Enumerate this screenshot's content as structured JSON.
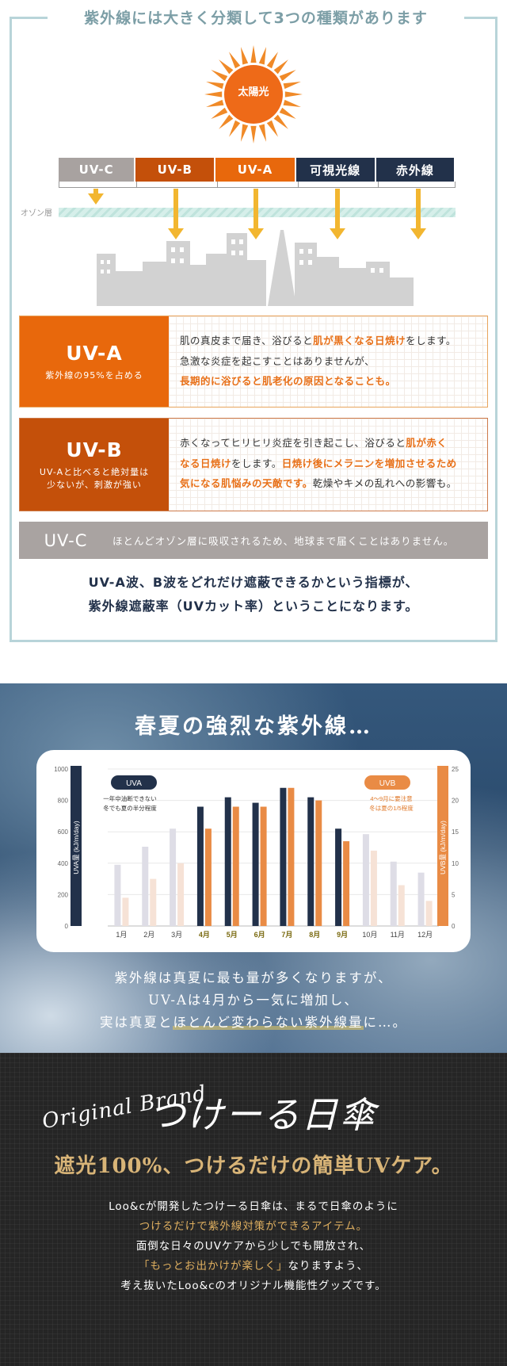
{
  "section1": {
    "title": "紫外線には大きく分類して3つの種類があります",
    "sun_label": "太陽光",
    "bands": [
      {
        "label": "UV-C",
        "color": "#a8a2a0"
      },
      {
        "label": "UV-B",
        "color": "#c4500a"
      },
      {
        "label": "UV-A",
        "color": "#e8680c"
      },
      {
        "label": "可視光線",
        "color": "#22314a"
      },
      {
        "label": "赤外線",
        "color": "#22314a"
      }
    ],
    "ozone_label": "オゾン層",
    "uva": {
      "title": "UV-A",
      "subtitle": "紫外線の95%を占める",
      "color": "#e8680c",
      "line1_pre": "肌の真皮まで届き、浴びると",
      "line1_hl": "肌が黒くなる日焼け",
      "line1_post": "をします。",
      "line2": "急激な炎症を起こすことはありませんが、",
      "line3_hl": "長期的に浴びると肌老化の原因となることも。"
    },
    "uvb": {
      "title": "UV-B",
      "subtitle_1": "UV-Aと比べると絶対量は",
      "subtitle_2": "少ないが、刺激が強い",
      "color": "#c4500a",
      "line1_pre": "赤くなってヒリヒリ炎症を引き起こし、浴びると",
      "line1_hl": "肌が赤く",
      "line2_hl": "なる日焼け",
      "line2_mid": "をします。",
      "line2_hl2": "日焼け後にメラニンを増加させるため",
      "line3_hl": "気になる肌悩みの天敵です。",
      "line3_post": "乾燥やキメの乱れへの影響も。"
    },
    "uvc": {
      "title": "UV-C",
      "text": "ほとんどオゾン層に吸収されるため、地球まで届くことはありません。"
    },
    "summary_1": "UV-A波、B波をどれだけ遮蔽できるかという指標が、",
    "summary_2": "紫外線遮蔽率（UVカット率）ということになります。"
  },
  "section2": {
    "title": "春夏の強烈な紫外線…",
    "text_1": "紫外線は真夏に最も量が多くなりますが、",
    "text_2": "UV-Aは4月から一気に増加し、",
    "text_3_pre": "実は真夏と",
    "text_3_hl": "ほとんど変わらない紫外線量",
    "text_3_post": "に…。"
  },
  "chart_data": {
    "type": "bar",
    "categories": [
      "1月",
      "2月",
      "3月",
      "4月",
      "5月",
      "6月",
      "7月",
      "8月",
      "9月",
      "10月",
      "11月",
      "12月"
    ],
    "highlight_months": [
      "4月",
      "5月",
      "6月",
      "7月",
      "8月",
      "9月"
    ],
    "series": [
      {
        "name": "UVA",
        "axis": "left",
        "values": [
          390,
          505,
          620,
          760,
          820,
          785,
          880,
          820,
          620,
          585,
          410,
          340
        ],
        "color": "#22314a",
        "dim_color": "#dedde6"
      },
      {
        "name": "UVB",
        "axis": "right",
        "values": [
          4.5,
          7.5,
          10,
          15.5,
          19,
          19,
          22,
          20,
          13.5,
          12,
          6.5,
          4
        ],
        "color": "#e98b45",
        "dim_color": "#f6e2d6"
      }
    ],
    "ylabel": "UVA量 (kJ/m/day)",
    "ylabel_right": "UVB量 (kJ/m/day)",
    "ylim": [
      0,
      1000
    ],
    "ylim_right": [
      0,
      25
    ],
    "yticks": [
      0,
      200,
      400,
      600,
      800,
      1000
    ],
    "yticks_right": [
      0,
      5,
      10,
      15,
      20,
      25
    ],
    "uva_tag": "UVA",
    "uva_note_1": "一年中油断できない",
    "uva_note_2": "冬でも夏の半分程度",
    "uvb_tag": "UVB",
    "uvb_note_1": "4～9月に要注意",
    "uvb_note_2": "冬は夏の1/5程度"
  },
  "section3": {
    "brand_en": "Original Brand",
    "brand_jp": "つけーる日傘",
    "headline": "遮光100%、つけるだけの簡単UVケア。",
    "body_1": "Loo&cが開発したつけーる日傘は、まるで日傘のように",
    "body_2": "つけるだけで紫外線対策ができるアイテム。",
    "body_3": "面倒な日々のUVケアから少しでも開放され、",
    "body_4": "「もっとお出かけが楽しく」",
    "body_4_post": "なりますよう、",
    "body_5": "考え抜いたLoo&cのオリジナル機能性グッズです。"
  }
}
